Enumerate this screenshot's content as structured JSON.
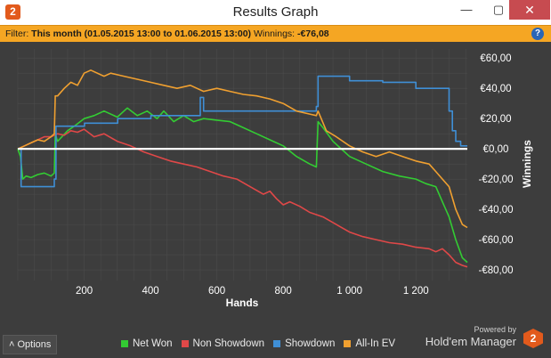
{
  "window": {
    "logo_glyph": "2",
    "title": "Results Graph",
    "minimize_glyph": "—",
    "maximize_glyph": "▢",
    "close_glyph": "✕"
  },
  "filter": {
    "label": "Filter:",
    "value": "This month (01.05.2015 13:00 to 01.06.2015 13:00)",
    "winnings_label": "Winnings:",
    "winnings_value": "-€76,08",
    "help_glyph": "?"
  },
  "colors": {
    "net_won": "#33cc33",
    "non_showdown": "#e04848",
    "showdown": "#3f8fd6",
    "all_in_ev": "#f0a030",
    "zero_line": "#ffffff",
    "grid": "#4b4b4b"
  },
  "chart_data": {
    "type": "line",
    "xlabel": "Hands",
    "ylabel": "Winnings",
    "xlim": [
      0,
      1355
    ],
    "ylim": [
      -87,
      66
    ],
    "x_ticks": [
      200,
      400,
      600,
      800,
      1000,
      1200
    ],
    "x_tick_labels": [
      "200",
      "400",
      "600",
      "800",
      "1 000",
      "1 200"
    ],
    "y_ticks": [
      60,
      40,
      20,
      0,
      -20,
      -40,
      -60,
      -80
    ],
    "y_tick_labels": [
      "€60,00",
      "€40,00",
      "€20,00",
      "€0,00",
      "-€20,00",
      "-€40,00",
      "-€60,00",
      "-€80,00"
    ],
    "grid": true,
    "legend_position": "bottom",
    "series": [
      {
        "name": "Net Won",
        "color": "#33cc33",
        "x": [
          0,
          8,
          15,
          25,
          40,
          60,
          80,
          100,
          110,
          113,
          120,
          150,
          170,
          200,
          230,
          260,
          300,
          330,
          360,
          390,
          420,
          440,
          470,
          500,
          530,
          560,
          600,
          640,
          680,
          720,
          760,
          800,
          840,
          880,
          900,
          905,
          920,
          950,
          1000,
          1050,
          1100,
          1150,
          1200,
          1230,
          1260,
          1280,
          1300,
          1320,
          1340,
          1355
        ],
        "y": [
          0,
          -5,
          -20,
          -18,
          -19,
          -17,
          -16,
          -18,
          -16,
          10,
          5,
          12,
          15,
          20,
          22,
          25,
          21,
          27,
          22,
          25,
          20,
          25,
          18,
          22,
          18,
          20,
          19,
          18,
          14,
          10,
          6,
          2,
          -5,
          -10,
          -12,
          18,
          14,
          5,
          -5,
          -10,
          -15,
          -18,
          -20,
          -23,
          -25,
          -35,
          -45,
          -60,
          -72,
          -75
        ]
      },
      {
        "name": "Non Showdown",
        "color": "#e04848",
        "x": [
          0,
          20,
          40,
          60,
          80,
          100,
          120,
          140,
          160,
          180,
          200,
          230,
          260,
          300,
          340,
          380,
          420,
          460,
          500,
          540,
          580,
          620,
          660,
          700,
          740,
          760,
          780,
          800,
          820,
          850,
          880,
          920,
          960,
          1000,
          1040,
          1080,
          1120,
          1160,
          1200,
          1240,
          1260,
          1280,
          1300,
          1320,
          1340,
          1355
        ],
        "y": [
          0,
          2,
          4,
          6,
          8,
          8,
          10,
          9,
          12,
          11,
          13,
          8,
          10,
          5,
          2,
          -2,
          -5,
          -8,
          -10,
          -12,
          -15,
          -18,
          -20,
          -25,
          -30,
          -28,
          -33,
          -37,
          -35,
          -38,
          -42,
          -45,
          -50,
          -55,
          -58,
          -60,
          -62,
          -63,
          -65,
          -66,
          -68,
          -66,
          -70,
          -75,
          -77,
          -78
        ]
      },
      {
        "name": "Showdown",
        "color": "#3f8fd6",
        "x": [
          0,
          3,
          10,
          105,
          110,
          115,
          200,
          201,
          300,
          301,
          400,
          401,
          545,
          550,
          560,
          720,
          760,
          900,
          905,
          1000,
          1100,
          1180,
          1200,
          1290,
          1300,
          1310,
          1320,
          1335,
          1355
        ],
        "y": [
          0,
          0,
          -25,
          -25,
          -20,
          15,
          15,
          17,
          17,
          20,
          20,
          22,
          22,
          34,
          25,
          25,
          25,
          28,
          48,
          45,
          44,
          44,
          40,
          40,
          25,
          12,
          5,
          2,
          2
        ],
        "step": true
      },
      {
        "name": "All-In EV",
        "color": "#f0a030",
        "x": [
          0,
          20,
          40,
          60,
          80,
          100,
          110,
          113,
          120,
          140,
          160,
          180,
          200,
          220,
          260,
          280,
          320,
          360,
          400,
          440,
          480,
          520,
          560,
          600,
          640,
          680,
          720,
          760,
          800,
          840,
          880,
          900,
          905,
          930,
          960,
          1000,
          1040,
          1080,
          1120,
          1160,
          1200,
          1240,
          1260,
          1280,
          1300,
          1320,
          1340,
          1355
        ],
        "y": [
          0,
          2,
          4,
          6,
          5,
          8,
          10,
          35,
          35,
          40,
          44,
          42,
          50,
          52,
          48,
          50,
          48,
          46,
          44,
          42,
          40,
          42,
          38,
          40,
          38,
          36,
          35,
          33,
          30,
          25,
          23,
          22,
          25,
          12,
          8,
          2,
          -2,
          -5,
          -2,
          -5,
          -8,
          -10,
          -15,
          -20,
          -25,
          -40,
          -50,
          -52
        ]
      }
    ]
  },
  "controls": {
    "options_label": "Options",
    "options_glyph": "˄"
  },
  "branding": {
    "powered_by": "Powered by",
    "name": "Hold'em Manager",
    "logo_glyph": "2"
  }
}
